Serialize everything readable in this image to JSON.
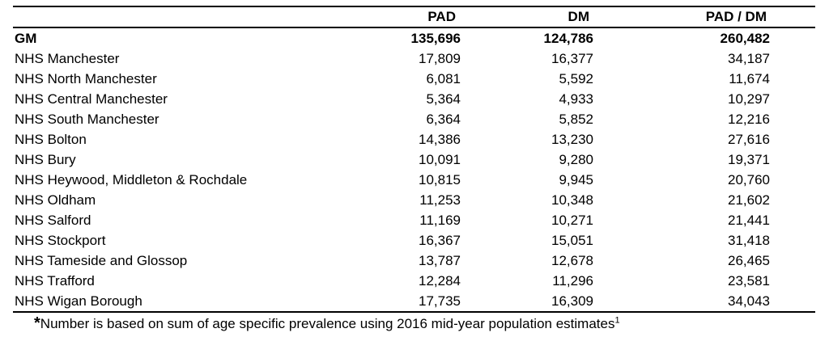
{
  "table": {
    "headers": {
      "name": "",
      "pad": "PAD",
      "dm": "DM",
      "both": "PAD / DM"
    },
    "rows": [
      {
        "name": "GM",
        "pad": "135,696",
        "dm": "124,786",
        "both": "260,482",
        "bold": true
      },
      {
        "name": "NHS Manchester",
        "pad": "17,809",
        "dm": "16,377",
        "both": "34,187"
      },
      {
        "name": "NHS North Manchester",
        "pad": "6,081",
        "dm": "5,592",
        "both": "11,674"
      },
      {
        "name": "NHS Central Manchester",
        "pad": "5,364",
        "dm": "4,933",
        "both": "10,297"
      },
      {
        "name": "NHS South Manchester",
        "pad": "6,364",
        "dm": "5,852",
        "both": "12,216"
      },
      {
        "name": "NHS Bolton",
        "pad": "14,386",
        "dm": "13,230",
        "both": "27,616"
      },
      {
        "name": "NHS Bury",
        "pad": "10,091",
        "dm": "9,280",
        "both": "19,371"
      },
      {
        "name": "NHS Heywood, Middleton & Rochdale",
        "pad": "10,815",
        "dm": "9,945",
        "both": "20,760"
      },
      {
        "name": "NHS Oldham",
        "pad": "11,253",
        "dm": "10,348",
        "both": "21,602"
      },
      {
        "name": "NHS Salford",
        "pad": "11,169",
        "dm": "10,271",
        "both": "21,441"
      },
      {
        "name": "NHS Stockport",
        "pad": "16,367",
        "dm": "15,051",
        "both": "31,418"
      },
      {
        "name": "NHS Tameside and Glossop",
        "pad": "13,787",
        "dm": "12,678",
        "both": "26,465"
      },
      {
        "name": "NHS Trafford",
        "pad": "12,284",
        "dm": "11,296",
        "both": "23,581"
      },
      {
        "name": "NHS Wigan Borough",
        "pad": "17,735",
        "dm": "16,309",
        "both": "34,043"
      }
    ]
  },
  "footnote": {
    "marker": "*",
    "text": "Number is based on sum of age specific prevalence using 2016 mid-year population estimates",
    "reference": "1"
  }
}
